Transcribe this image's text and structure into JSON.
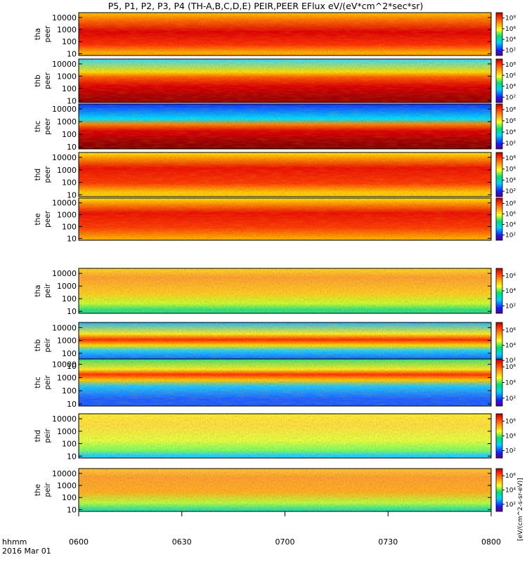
{
  "chart_data": {
    "type": "heatmap",
    "title": "P5, P1, P2, P3, P4 (TH-A,B,C,D,E) PEIR,PEER EFlux eV/(eV*cm^2*sec*sr)",
    "colorbar_label": "[eV/(cm^2-s-sr-eV)]",
    "xlabel": "hhmm",
    "date_label": "2016 Mar 01",
    "x_ticks": [
      "0600",
      "0630",
      "0700",
      "0730",
      "0800"
    ],
    "x_range": [
      "06:00",
      "08:00"
    ],
    "y_scale": "log",
    "y_range_eV": [
      7,
      25000
    ],
    "y_ticks": [
      "10",
      "100",
      "1000",
      "10000"
    ],
    "colorbar_ticks": [
      "10²",
      "10⁴",
      "10⁶",
      "10⁸"
    ],
    "colorbar_ticks_ion": [
      "10²",
      "10⁴",
      "10⁶"
    ],
    "panels": [
      {
        "probe": "tha",
        "species": "peer",
        "colorbar": "electron",
        "dominant": "red-orange, lower energies"
      },
      {
        "probe": "thb",
        "species": "peer",
        "colorbar": "electron",
        "dominant": "red band 10-300 eV, cyan above"
      },
      {
        "probe": "thc",
        "species": "peer",
        "colorbar": "electron",
        "dominant": "red band 10-300 eV, blue above"
      },
      {
        "probe": "thd",
        "species": "peer",
        "colorbar": "electron",
        "dominant": "red-orange, 10-5000 eV"
      },
      {
        "probe": "the",
        "species": "peer",
        "colorbar": "electron",
        "dominant": "red-orange, 10-3000 eV"
      },
      {
        "probe": "tha",
        "species": "peir",
        "colorbar": "ion",
        "dominant": "orange-yellow, 100-10000 eV"
      },
      {
        "probe": "thb",
        "species": "peir",
        "colorbar": "ion",
        "dominant": "red band near 1000 eV, cyan elsewhere"
      },
      {
        "probe": "thc",
        "species": "peir",
        "colorbar": "ion",
        "dominant": "red band near 1000 eV, green/cyan elsewhere"
      },
      {
        "probe": "thd",
        "species": "peir",
        "colorbar": "ion",
        "dominant": "yellow, 100-10000 eV"
      },
      {
        "probe": "the",
        "species": "peir",
        "colorbar": "ion",
        "dominant": "orange, 100-10000 eV"
      }
    ]
  }
}
